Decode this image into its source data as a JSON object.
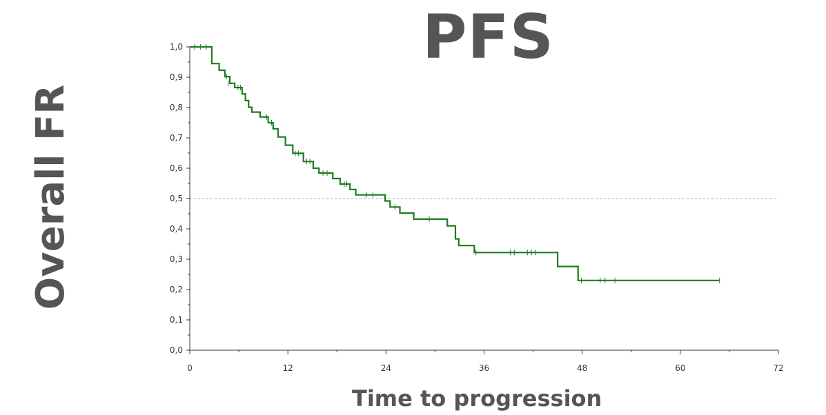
{
  "chart_data": {
    "type": "line",
    "title": "PFS",
    "xlabel": "Time to progression",
    "ylabel": "Overall FR",
    "xlim": [
      0,
      72
    ],
    "ylim": [
      0,
      1
    ],
    "x_ticks": [
      "0",
      "12",
      "24",
      "36",
      "48",
      "60",
      "72"
    ],
    "x_tick_values": [
      0,
      12,
      24,
      36,
      48,
      60,
      72
    ],
    "y_ticks": [
      "0,0",
      "0,1",
      "0,2",
      "0,3",
      "0,4",
      "0,5",
      "0,6",
      "0,7",
      "0,8",
      "0,9",
      "1,0"
    ],
    "y_tick_values": [
      0,
      0.1,
      0.2,
      0.3,
      0.4,
      0.5,
      0.6,
      0.7,
      0.8,
      0.9,
      1.0
    ],
    "reference_line": {
      "y": 0.5,
      "style": "dashed",
      "color": "#aaaaaa"
    },
    "grid": false,
    "series": [
      {
        "color": "#1e7b1e",
        "step_points": [
          [
            0,
            1.0
          ],
          [
            2.7,
            1.0
          ],
          [
            2.7,
            0.945
          ],
          [
            3.6,
            0.945
          ],
          [
            3.6,
            0.923
          ],
          [
            4.3,
            0.923
          ],
          [
            4.3,
            0.902
          ],
          [
            4.9,
            0.902
          ],
          [
            4.9,
            0.88
          ],
          [
            5.5,
            0.88
          ],
          [
            5.5,
            0.866
          ],
          [
            6.4,
            0.866
          ],
          [
            6.4,
            0.845
          ],
          [
            6.8,
            0.845
          ],
          [
            6.8,
            0.823
          ],
          [
            7.2,
            0.823
          ],
          [
            7.2,
            0.801
          ],
          [
            7.6,
            0.801
          ],
          [
            7.6,
            0.785
          ],
          [
            8.6,
            0.785
          ],
          [
            8.6,
            0.769
          ],
          [
            9.6,
            0.769
          ],
          [
            9.6,
            0.75
          ],
          [
            10.2,
            0.75
          ],
          [
            10.2,
            0.73
          ],
          [
            10.8,
            0.73
          ],
          [
            10.8,
            0.703
          ],
          [
            11.7,
            0.703
          ],
          [
            11.7,
            0.676
          ],
          [
            12.6,
            0.676
          ],
          [
            12.6,
            0.649
          ],
          [
            13.9,
            0.649
          ],
          [
            13.9,
            0.622
          ],
          [
            15.1,
            0.622
          ],
          [
            15.1,
            0.6
          ],
          [
            15.8,
            0.6
          ],
          [
            15.8,
            0.584
          ],
          [
            17.5,
            0.584
          ],
          [
            17.5,
            0.566
          ],
          [
            18.4,
            0.566
          ],
          [
            18.4,
            0.548
          ],
          [
            19.6,
            0.548
          ],
          [
            19.6,
            0.53
          ],
          [
            20.3,
            0.53
          ],
          [
            20.3,
            0.512
          ],
          [
            23.9,
            0.512
          ],
          [
            23.9,
            0.492
          ],
          [
            24.5,
            0.492
          ],
          [
            24.5,
            0.472
          ],
          [
            25.7,
            0.472
          ],
          [
            25.7,
            0.452
          ],
          [
            27.4,
            0.452
          ],
          [
            27.4,
            0.432
          ],
          [
            31.5,
            0.432
          ],
          [
            31.5,
            0.41
          ],
          [
            32.5,
            0.41
          ],
          [
            32.5,
            0.367
          ],
          [
            32.9,
            0.367
          ],
          [
            32.9,
            0.345
          ],
          [
            34.8,
            0.345
          ],
          [
            34.8,
            0.322
          ],
          [
            45.0,
            0.322
          ],
          [
            45.0,
            0.276
          ],
          [
            47.5,
            0.276
          ],
          [
            47.5,
            0.23
          ],
          [
            64.8,
            0.23
          ]
        ],
        "censored": [
          [
            0.6,
            1.0
          ],
          [
            1.3,
            1.0
          ],
          [
            2.0,
            1.0
          ],
          [
            4.5,
            0.902
          ],
          [
            4.7,
            0.88
          ],
          [
            5.9,
            0.866
          ],
          [
            6.2,
            0.866
          ],
          [
            9.4,
            0.769
          ],
          [
            10.0,
            0.75
          ],
          [
            12.9,
            0.649
          ],
          [
            13.3,
            0.649
          ],
          [
            14.3,
            0.622
          ],
          [
            14.7,
            0.622
          ],
          [
            16.3,
            0.584
          ],
          [
            16.8,
            0.584
          ],
          [
            18.9,
            0.548
          ],
          [
            19.2,
            0.548
          ],
          [
            21.6,
            0.512
          ],
          [
            22.4,
            0.512
          ],
          [
            25.1,
            0.472
          ],
          [
            29.3,
            0.432
          ],
          [
            35.0,
            0.322
          ],
          [
            39.2,
            0.322
          ],
          [
            39.7,
            0.322
          ],
          [
            41.3,
            0.322
          ],
          [
            41.8,
            0.322
          ],
          [
            42.3,
            0.322
          ],
          [
            47.9,
            0.23
          ],
          [
            50.2,
            0.23
          ],
          [
            50.8,
            0.23
          ],
          [
            52.0,
            0.23
          ],
          [
            64.8,
            0.23
          ]
        ]
      }
    ]
  }
}
